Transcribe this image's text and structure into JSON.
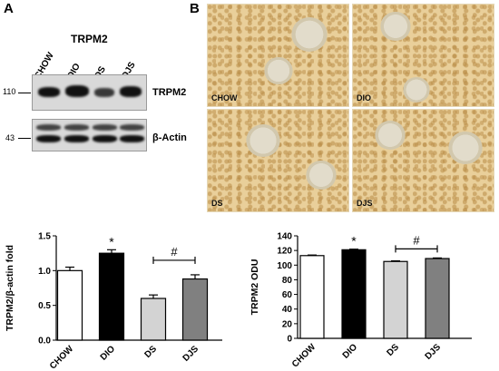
{
  "panel_a": {
    "letter": "A",
    "blot_title": "TRPM2",
    "lanes": [
      "CHOW",
      "DIO",
      "DS",
      "DJS"
    ],
    "markers": {
      "upper": "110",
      "lower": "43"
    },
    "band_labels": {
      "upper": "TRPM2",
      "lower": "β-Actin"
    }
  },
  "panel_b": {
    "letter": "B",
    "images": [
      {
        "label": "CHOW"
      },
      {
        "label": "DIO"
      },
      {
        "label": "DS"
      },
      {
        "label": "DJS"
      }
    ]
  },
  "chart_data": [
    {
      "type": "bar",
      "categories": [
        "CHOW",
        "DIO",
        "DS",
        "DJS"
      ],
      "values": [
        1.0,
        1.25,
        0.6,
        0.88
      ],
      "errors": [
        0.05,
        0.05,
        0.05,
        0.06
      ],
      "colors": [
        "#ffffff",
        "#000000",
        "#d3d3d3",
        "#808080"
      ],
      "title": "",
      "xlabel": "",
      "ylabel": "TRPM2/β-actin fold",
      "ylim": [
        0,
        1.5
      ],
      "yticks": [
        "0.0",
        "0.5",
        "1.0",
        "1.5"
      ],
      "annotations": {
        "star": "*",
        "hash": "#"
      },
      "grid": false
    },
    {
      "type": "bar",
      "categories": [
        "CHOW",
        "DIO",
        "DS",
        "DJS"
      ],
      "values": [
        113,
        121,
        105,
        109
      ],
      "errors": [
        0.8,
        0.8,
        0.8,
        0.8
      ],
      "colors": [
        "#ffffff",
        "#000000",
        "#d3d3d3",
        "#808080"
      ],
      "title": "",
      "xlabel": "",
      "ylabel": "TRPM2 ODU",
      "ylim": [
        0,
        140
      ],
      "yticks": [
        "0",
        "20",
        "40",
        "60",
        "80",
        "100",
        "120",
        "140"
      ],
      "annotations": {
        "star": "*",
        "hash": "#"
      },
      "grid": false
    }
  ]
}
